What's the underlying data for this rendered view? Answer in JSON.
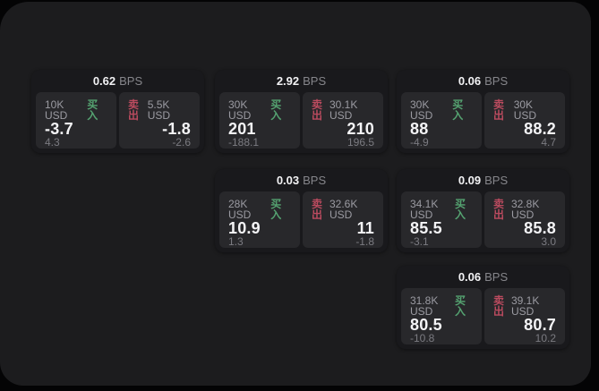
{
  "labels": {
    "bps_unit": "BPS",
    "buy": "买入",
    "sell": "卖出"
  },
  "colors": {
    "background": "#040405",
    "panel": "#1c1c1e",
    "card": "#19191c",
    "tile": "#28282b",
    "buy_green": "#55a371",
    "sell_red": "#bb4b5f"
  },
  "cards": [
    {
      "bps": "0.62",
      "col": 1,
      "row": 1,
      "buy": {
        "amount": "10K USD",
        "price": "-3.7",
        "delta": "4.3"
      },
      "sell": {
        "amount": "5.5K USD",
        "price": "-1.8",
        "delta": "-2.6"
      }
    },
    {
      "bps": "2.92",
      "col": 2,
      "row": 1,
      "buy": {
        "amount": "30K USD",
        "price": "201",
        "delta": "-188.1"
      },
      "sell": {
        "amount": "30.1K USD",
        "price": "210",
        "delta": "196.5"
      }
    },
    {
      "bps": "0.06",
      "col": 3,
      "row": 1,
      "buy": {
        "amount": "30K USD",
        "price": "88",
        "delta": "-4.9"
      },
      "sell": {
        "amount": "30K USD",
        "price": "88.2",
        "delta": "4.7"
      }
    },
    {
      "bps": "0.03",
      "col": 2,
      "row": 2,
      "buy": {
        "amount": "28K USD",
        "price": "10.9",
        "delta": "1.3"
      },
      "sell": {
        "amount": "32.6K USD",
        "price": "11",
        "delta": "-1.8"
      }
    },
    {
      "bps": "0.09",
      "col": 3,
      "row": 2,
      "buy": {
        "amount": "34.1K USD",
        "price": "85.5",
        "delta": "-3.1"
      },
      "sell": {
        "amount": "32.8K USD",
        "price": "85.8",
        "delta": "3.0"
      }
    },
    {
      "bps": "0.06",
      "col": 3,
      "row": 3,
      "buy": {
        "amount": "31.8K USD",
        "price": "80.5",
        "delta": "-10.8"
      },
      "sell": {
        "amount": "39.1K USD",
        "price": "80.7",
        "delta": "10.2"
      }
    }
  ]
}
